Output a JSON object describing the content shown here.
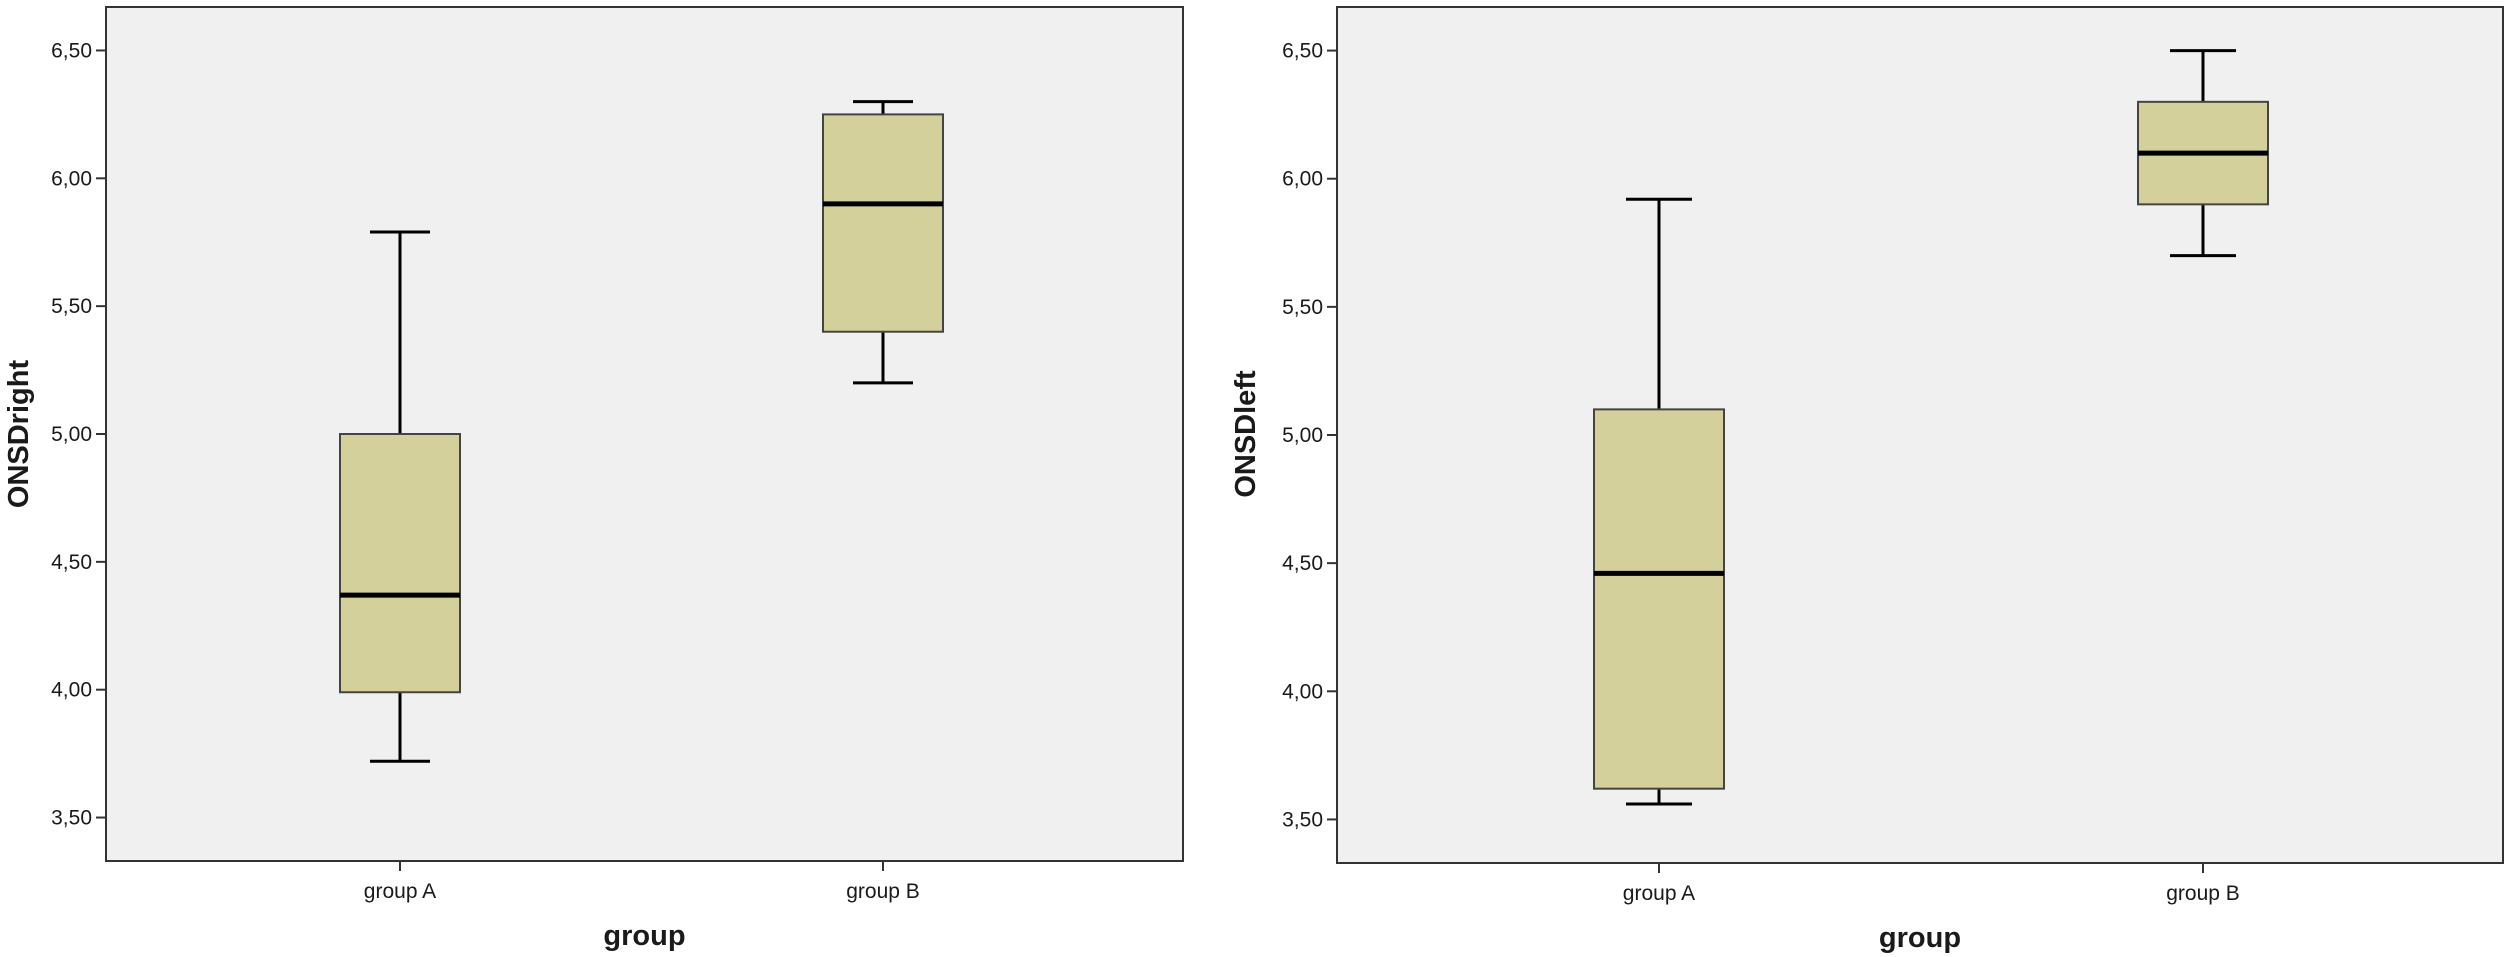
{
  "colors": {
    "plot_background": "#f0f0f0",
    "box_fill": "#d4d09c",
    "box_stroke": "#444444",
    "median_line": "#000000",
    "whisker": "#000000",
    "axis": "#333333"
  },
  "chart_data": [
    {
      "type": "box",
      "xlabel": "group",
      "ylabel": "ONSDright",
      "ylim": [
        3.33,
        6.67
      ],
      "yticks": [
        3.5,
        4.0,
        4.5,
        5.0,
        5.5,
        6.0,
        6.5
      ],
      "ytick_labels": [
        "3,50",
        "4,00",
        "4,50",
        "5,00",
        "5,50",
        "6,00",
        "6,50"
      ],
      "categories": [
        "group A",
        "group B"
      ],
      "boxes": [
        {
          "category": "group A",
          "whisker_low": 3.72,
          "q1": 3.99,
          "median": 4.37,
          "q3": 5.0,
          "whisker_high": 5.79
        },
        {
          "category": "group B",
          "whisker_low": 5.2,
          "q1": 5.4,
          "median": 5.9,
          "q3": 6.25,
          "whisker_high": 6.3
        }
      ],
      "grid": false
    },
    {
      "type": "box",
      "xlabel": "group",
      "ylabel": "ONSDleft",
      "ylim": [
        3.33,
        6.67
      ],
      "yticks": [
        3.5,
        4.0,
        4.5,
        5.0,
        5.5,
        6.0,
        6.5
      ],
      "ytick_labels": [
        "3,50",
        "4,00",
        "4,50",
        "5,00",
        "5,50",
        "6,00",
        "6,50"
      ],
      "categories": [
        "group A",
        "group B"
      ],
      "boxes": [
        {
          "category": "group A",
          "whisker_low": 3.56,
          "q1": 3.62,
          "median": 4.46,
          "q3": 5.1,
          "whisker_high": 5.92
        },
        {
          "category": "group B",
          "whisker_low": 5.7,
          "q1": 5.9,
          "median": 6.1,
          "q3": 6.3,
          "whisker_high": 6.5
        }
      ],
      "grid": false
    }
  ]
}
